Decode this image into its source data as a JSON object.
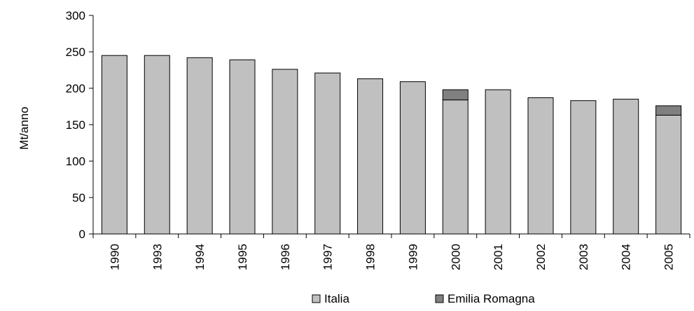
{
  "chart_data": {
    "type": "bar",
    "stacked": true,
    "categories": [
      "1990",
      "1993",
      "1994",
      "1995",
      "1996",
      "1997",
      "1998",
      "1999",
      "2000",
      "2001",
      "2002",
      "2003",
      "2004",
      "2005"
    ],
    "series": [
      {
        "name": "Italia",
        "values": [
          245,
          245,
          242,
          239,
          226,
          221,
          213,
          209,
          184,
          198,
          187,
          183,
          185,
          163
        ],
        "color": "#c0c0c0"
      },
      {
        "name": "Emilia Romagna",
        "values": [
          null,
          null,
          null,
          null,
          null,
          null,
          null,
          null,
          14,
          null,
          null,
          null,
          null,
          13
        ],
        "color": "#808080"
      }
    ],
    "ylabel": "Mt/anno",
    "ylim": [
      0,
      300
    ],
    "yticks": [
      0,
      50,
      100,
      150,
      200,
      250,
      300
    ],
    "grid": false,
    "legend": "bottom"
  }
}
